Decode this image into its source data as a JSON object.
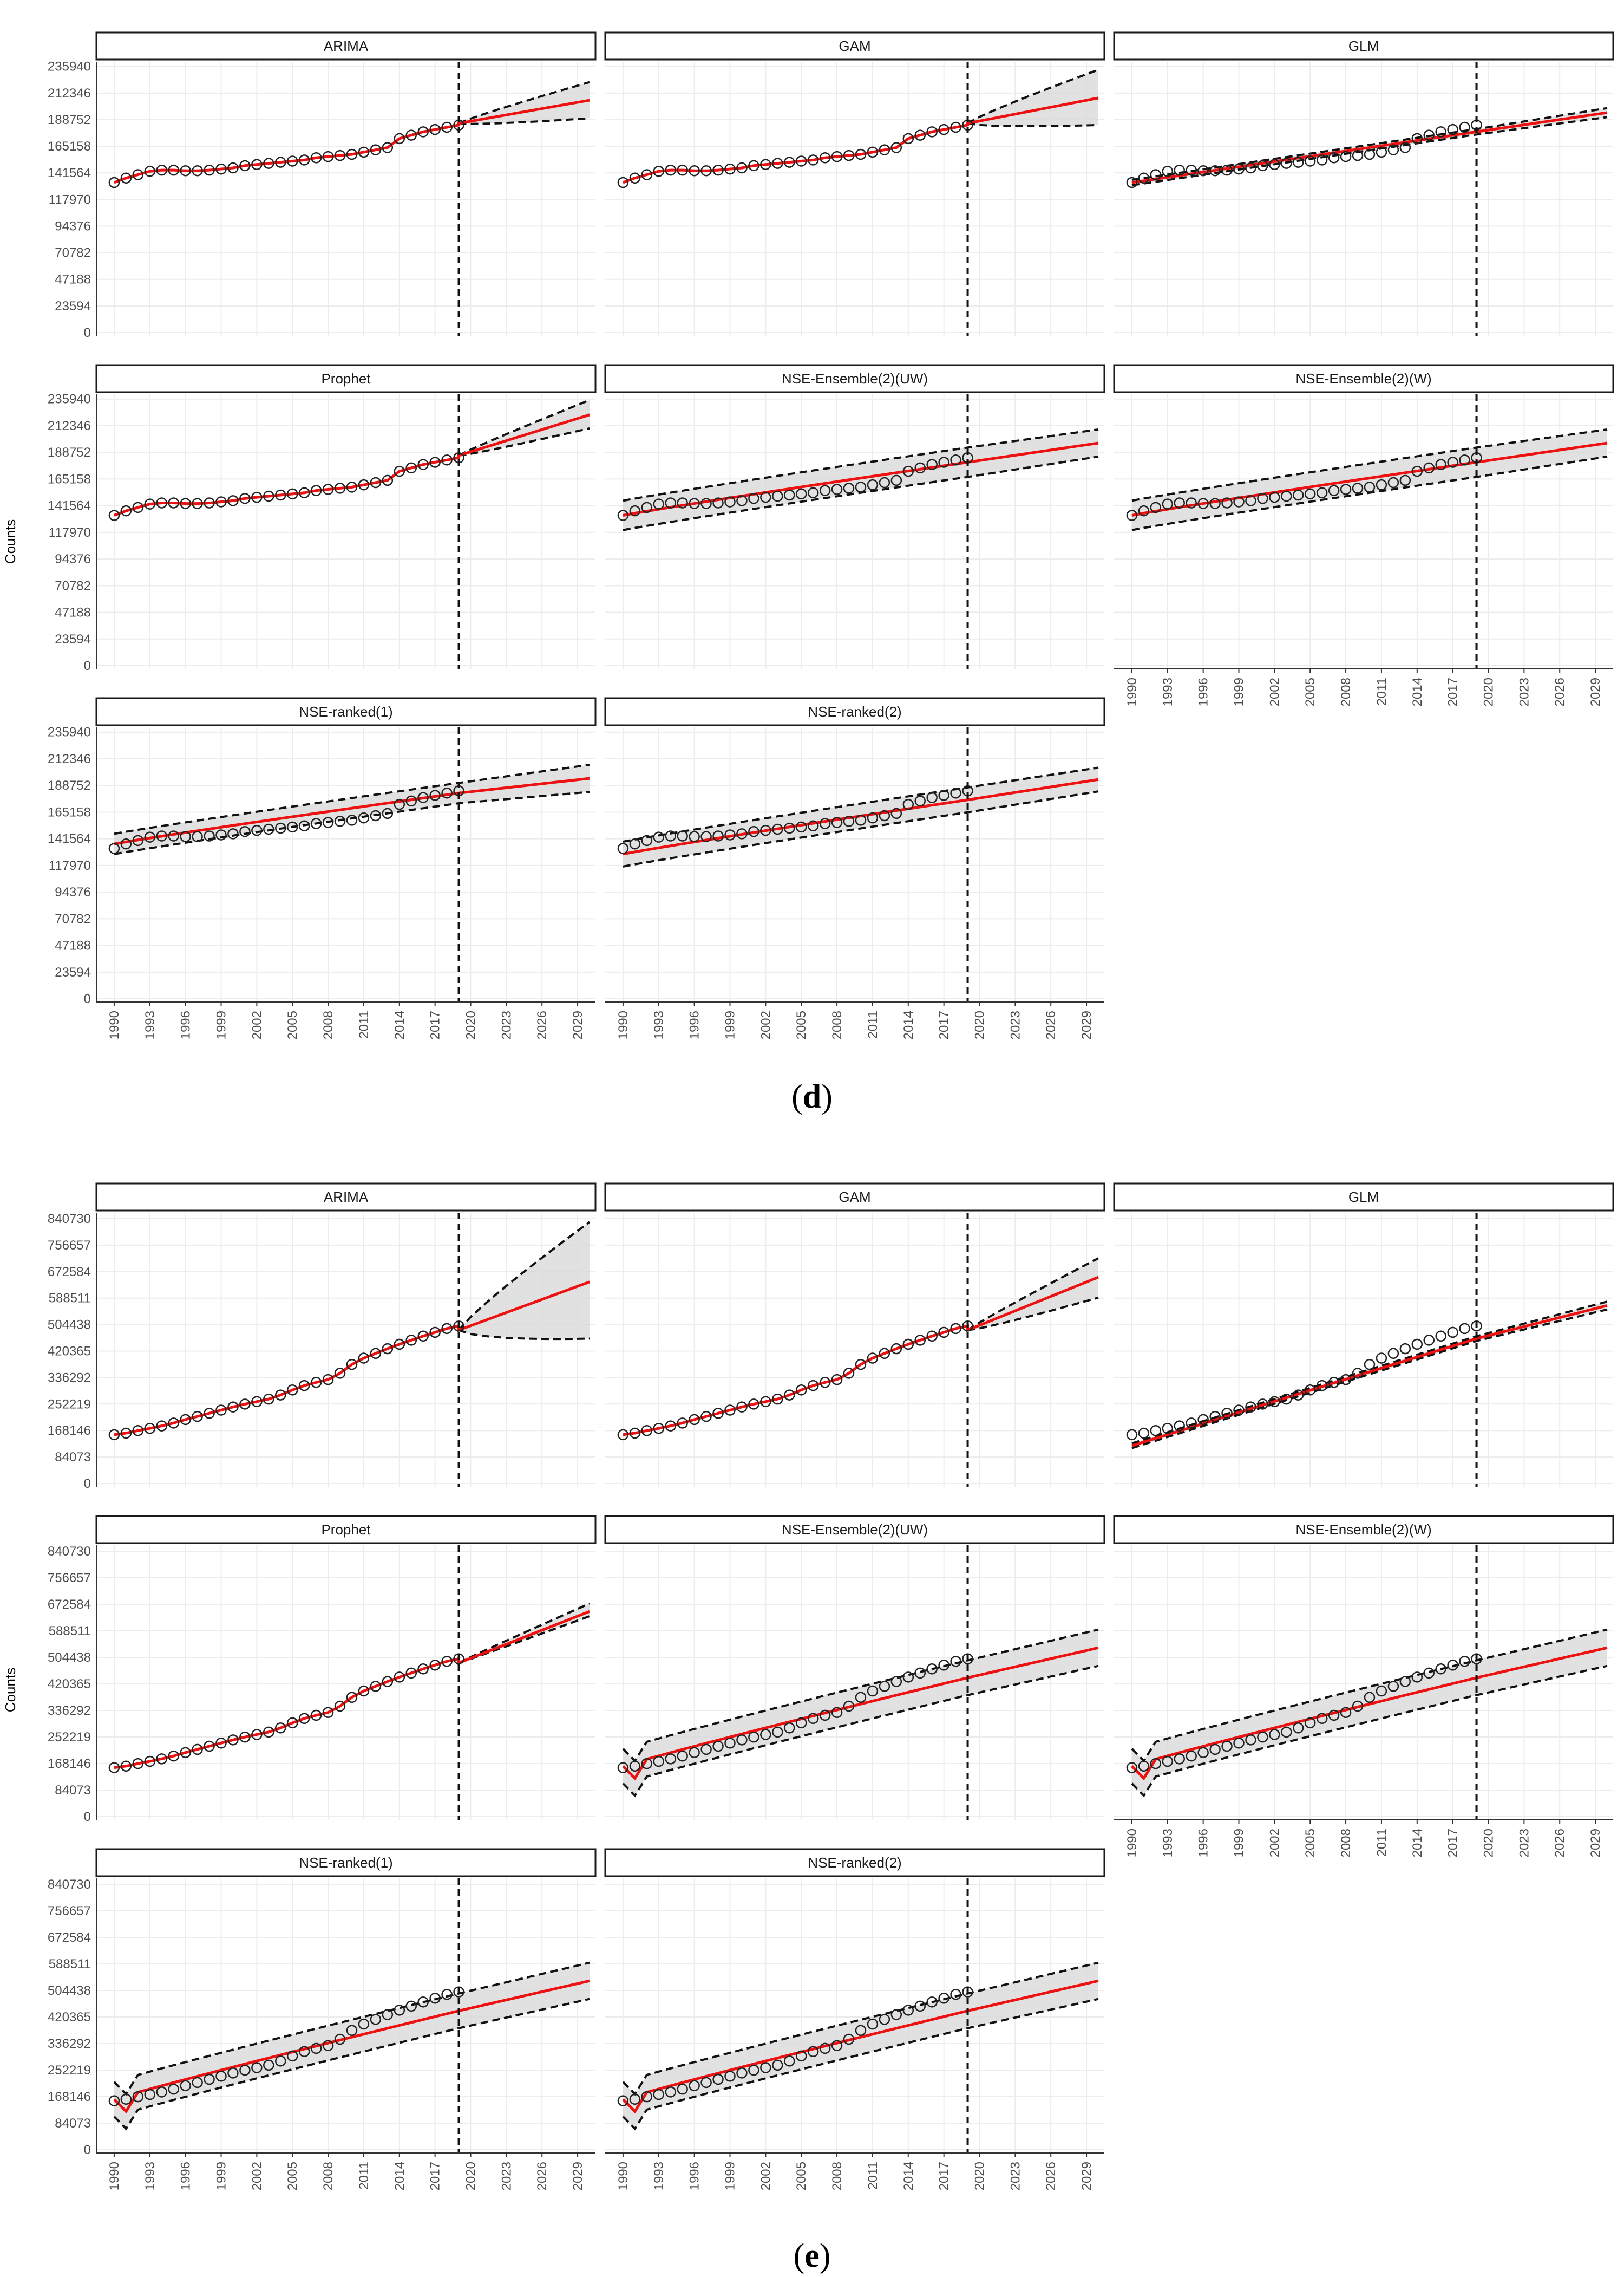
{
  "figures": [
    {
      "caption_open": "(",
      "caption_letter": "d",
      "caption_close": ")",
      "ylabel": "Counts",
      "yticks": [
        0,
        23594,
        47188,
        70782,
        94376,
        117970,
        141564,
        165158,
        188752,
        212346,
        235940
      ],
      "ymax": 243000,
      "forecast_start": 2019,
      "panels": [
        {
          "name": "ARIMA",
          "fit": "obs",
          "fc_start": 185500,
          "fc_end": 206000,
          "lo_end": 190000,
          "hi_end": 222000,
          "band_before": false
        },
        {
          "name": "GAM",
          "fit": "obs",
          "fc_start": 185500,
          "fc_end": 208000,
          "lo_end": 184000,
          "hi_end": 233000,
          "band_before": false
        },
        {
          "name": "GLM",
          "fit": "linear",
          "fit_start": 133000,
          "fit_2019": 178000,
          "fc_end": 195000,
          "lo_end": 191000,
          "hi_end": 199000,
          "band_before": false
        },
        {
          "name": "Prophet",
          "fit": "obs",
          "fc_start": 186000,
          "fc_end": 222000,
          "lo_end": 210000,
          "hi_end": 235000,
          "band_before": false
        },
        {
          "name": "NSE-Ensemble(2)(UW)",
          "fit": "smooth",
          "fit_start": 133000,
          "fit_2019": 180000,
          "fc_end": 197000,
          "lo_end": 185000,
          "hi_end": 209000,
          "band_before": true,
          "band_width": 13000
        },
        {
          "name": "NSE-Ensemble(2)(W)",
          "fit": "smooth",
          "fit_start": 133000,
          "fit_2019": 180000,
          "fc_end": 197000,
          "lo_end": 185000,
          "hi_end": 209000,
          "band_before": true,
          "band_width": 13000
        },
        {
          "name": "NSE-ranked(1)",
          "fit": "smooth",
          "fit_start": 137000,
          "fit_2019": 182000,
          "fc_end": 195000,
          "lo_end": 184000,
          "hi_end": 208000,
          "band_before": true,
          "band_width": 9000
        },
        {
          "name": "NSE-ranked(2)",
          "fit": "smooth",
          "fit_start": 128000,
          "fit_2019": 176000,
          "fc_end": 194000,
          "lo_end": 184000,
          "hi_end": 205000,
          "band_before": true,
          "band_width": 11000
        }
      ],
      "observed": [
        133000,
        137000,
        140000,
        143000,
        144000,
        144000,
        143500,
        143500,
        144000,
        145000,
        146000,
        148000,
        149000,
        150000,
        151000,
        152000,
        153000,
        155000,
        156000,
        157000,
        158000,
        160000,
        162000,
        164000,
        172000,
        175000,
        178000,
        180000,
        182000,
        184000
      ]
    },
    {
      "caption_open": "(",
      "caption_letter": "e",
      "caption_close": ")",
      "ylabel": "Counts",
      "yticks": [
        0,
        84073,
        168146,
        252219,
        336292,
        420365,
        504438,
        588511,
        672584,
        756657,
        840730
      ],
      "ymax": 870000,
      "forecast_start": 2019,
      "panels": [
        {
          "name": "ARIMA",
          "fit": "obs",
          "fc_start": 487000,
          "fc_end": 640000,
          "lo_end": 460000,
          "hi_end": 830000,
          "band_before": false
        },
        {
          "name": "GAM",
          "fit": "obs",
          "fc_start": 487000,
          "fc_end": 655000,
          "lo_end": 590000,
          "hi_end": 715000,
          "band_before": false
        },
        {
          "name": "GLM",
          "fit": "linear",
          "fit_start": 120000,
          "fit_2019": 460000,
          "fc_end": 565000,
          "lo_end": 555000,
          "hi_end": 580000,
          "band_before": false
        },
        {
          "name": "Prophet",
          "fit": "obs",
          "fc_start": 487000,
          "fc_end": 650000,
          "lo_end": 635000,
          "hi_end": 675000,
          "band_before": false
        },
        {
          "name": "NSE-Ensemble(2)(UW)",
          "fit": "smooth",
          "fit_start": 160000,
          "fit_2019": 440000,
          "fc_end": 535000,
          "lo_end": 475000,
          "hi_end": 590000,
          "band_before": true,
          "band_width": 55000,
          "dip": true
        },
        {
          "name": "NSE-Ensemble(2)(W)",
          "fit": "smooth",
          "fit_start": 160000,
          "fit_2019": 440000,
          "fc_end": 535000,
          "lo_end": 475000,
          "hi_end": 590000,
          "band_before": true,
          "band_width": 55000,
          "dip": true
        },
        {
          "name": "NSE-ranked(1)",
          "fit": "smooth",
          "fit_start": 160000,
          "fit_2019": 440000,
          "fc_end": 535000,
          "lo_end": 475000,
          "hi_end": 590000,
          "band_before": true,
          "band_width": 55000,
          "dip": true
        },
        {
          "name": "NSE-ranked(2)",
          "fit": "smooth",
          "fit_start": 160000,
          "fit_2019": 440000,
          "fc_end": 535000,
          "lo_end": 475000,
          "hi_end": 590000,
          "band_before": true,
          "band_width": 55000,
          "dip": true
        }
      ],
      "observed": [
        155000,
        160000,
        168000,
        175000,
        183000,
        192000,
        203000,
        213000,
        223000,
        233000,
        243000,
        252000,
        260000,
        268000,
        281000,
        297000,
        311000,
        321000,
        330000,
        350000,
        378000,
        398000,
        413000,
        428000,
        442000,
        455000,
        468000,
        480000,
        492000,
        500000
      ]
    }
  ],
  "x_ticks": [
    "1990",
    "1993",
    "1996",
    "1999",
    "2002",
    "2005",
    "2008",
    "2011",
    "2014",
    "2017",
    "2020",
    "2023",
    "2026",
    "2029"
  ],
  "x_years": [
    1990,
    1993,
    1996,
    1999,
    2002,
    2005,
    2008,
    2011,
    2014,
    2017,
    2020,
    2023,
    2026,
    2029
  ],
  "xlim": [
    1988.5,
    2030.5
  ],
  "colors": {
    "fit": "#ee1111",
    "band": "#d9d9d9",
    "grid": "#ececec",
    "strip_fill": "#ffffff",
    "strip_border": "#1a1a1a",
    "axis": "#333333",
    "tick_text": "#4d4d4d"
  }
}
